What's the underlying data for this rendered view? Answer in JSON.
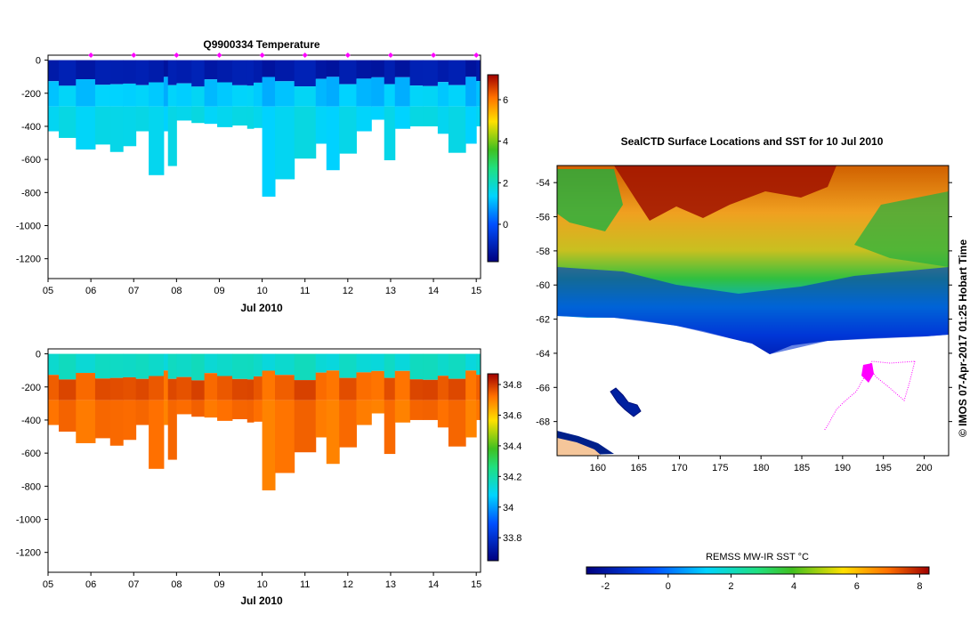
{
  "chart_data": [
    {
      "type": "heatmap",
      "title": "Q9900334  Temperature",
      "xlabel": "Jul 2010",
      "x_ticks": [
        "05",
        "06",
        "07",
        "08",
        "09",
        "10",
        "11",
        "12",
        "13",
        "14",
        "15"
      ],
      "xlim": [
        5,
        15.1
      ],
      "ylim": [
        -1320,
        30
      ],
      "y_ticks": [
        0,
        -200,
        -400,
        -600,
        -800,
        -1000,
        -1200
      ],
      "y_tick_labels": [
        "0",
        "-200",
        "-400",
        "-600",
        "-800",
        "-1000",
        "-1200"
      ],
      "colorbar": {
        "min": -1.8,
        "max": 7.2,
        "ticks": [
          0,
          2,
          4,
          6
        ],
        "tick_labels": [
          "0",
          "2",
          "4",
          "6"
        ]
      },
      "profile_markers": [
        6,
        7,
        8,
        9,
        10,
        11,
        12,
        13,
        14,
        15
      ],
      "layers": {
        "surface_value": -1.2,
        "mid_value": 1.2,
        "deep_value": 1.5
      },
      "profiles": [
        {
          "x": 5.0,
          "depth": 430
        },
        {
          "x": 5.25,
          "depth": 470
        },
        {
          "x": 5.65,
          "depth": 540
        },
        {
          "x": 6.1,
          "depth": 510
        },
        {
          "x": 6.45,
          "depth": 555
        },
        {
          "x": 6.75,
          "depth": 520
        },
        {
          "x": 7.05,
          "depth": 430
        },
        {
          "x": 7.35,
          "depth": 695
        },
        {
          "x": 7.7,
          "depth": 430
        },
        {
          "x": 7.8,
          "depth": 640
        },
        {
          "x": 8.0,
          "depth": 365
        },
        {
          "x": 8.35,
          "depth": 380
        },
        {
          "x": 8.65,
          "depth": 385
        },
        {
          "x": 8.95,
          "depth": 405
        },
        {
          "x": 9.3,
          "depth": 395
        },
        {
          "x": 9.65,
          "depth": 415
        },
        {
          "x": 9.8,
          "depth": 410
        },
        {
          "x": 10.0,
          "depth": 825
        },
        {
          "x": 10.3,
          "depth": 720
        },
        {
          "x": 10.75,
          "depth": 595
        },
        {
          "x": 11.25,
          "depth": 505
        },
        {
          "x": 11.5,
          "depth": 665
        },
        {
          "x": 11.8,
          "depth": 565
        },
        {
          "x": 12.2,
          "depth": 430
        },
        {
          "x": 12.55,
          "depth": 360
        },
        {
          "x": 12.85,
          "depth": 605
        },
        {
          "x": 13.1,
          "depth": 415
        },
        {
          "x": 13.45,
          "depth": 400
        },
        {
          "x": 13.75,
          "depth": 400
        },
        {
          "x": 14.1,
          "depth": 445
        },
        {
          "x": 14.35,
          "depth": 560
        },
        {
          "x": 14.75,
          "depth": 505
        },
        {
          "x": 15.0,
          "depth": 400
        }
      ]
    },
    {
      "type": "heatmap",
      "title": "",
      "xlabel": "Jul 2010",
      "x_ticks": [
        "05",
        "06",
        "07",
        "08",
        "09",
        "10",
        "11",
        "12",
        "13",
        "14",
        "15"
      ],
      "xlim": [
        5,
        15.1
      ],
      "ylim": [
        -1320,
        30
      ],
      "y_ticks": [
        0,
        -200,
        -400,
        -600,
        -800,
        -1000,
        -1200
      ],
      "y_tick_labels": [
        "0",
        "-200",
        "-400",
        "-600",
        "-800",
        "-1000",
        "-1200"
      ],
      "colorbar": {
        "min": 33.65,
        "max": 34.87,
        "ticks": [
          33.8,
          34,
          34.2,
          34.4,
          34.6,
          34.8
        ],
        "tick_labels": [
          "33.8",
          "34",
          "34.2",
          "34.4",
          "34.6",
          "34.8"
        ]
      },
      "layers": {
        "surface_value": 34.15,
        "mid_value": 34.75,
        "deep_value": 34.72
      },
      "profiles": "same as temperature profiles"
    },
    {
      "type": "heatmap",
      "title": "SealCTD Surface Locations and SST for 10 Jul 2010",
      "side_label": "© IMOS 07-Apr-2017 01:25 Hobart Time",
      "xlim": [
        155,
        203
      ],
      "ylim": [
        -70,
        -53
      ],
      "x_ticks": [
        160,
        165,
        170,
        175,
        180,
        185,
        190,
        195,
        200
      ],
      "x_tick_labels": [
        "160",
        "165",
        "170",
        "175",
        "180",
        "185",
        "190",
        "195",
        "200"
      ],
      "y_ticks": [
        -54,
        -56,
        -58,
        -60,
        -62,
        -64,
        -66,
        -68
      ],
      "y_tick_labels": [
        "-54",
        "-56",
        "-58",
        "-60",
        "-62",
        "-64",
        "-66",
        "-68"
      ],
      "colorbar": {
        "label": "REMSS MW-IR SST °C",
        "min": -2.6,
        "max": 8.3,
        "ticks": [
          -2,
          0,
          2,
          4,
          6,
          8
        ],
        "tick_labels": [
          "-2",
          "0",
          "2",
          "4",
          "6",
          "8"
        ]
      },
      "track_color": "#ff00ff"
    }
  ]
}
